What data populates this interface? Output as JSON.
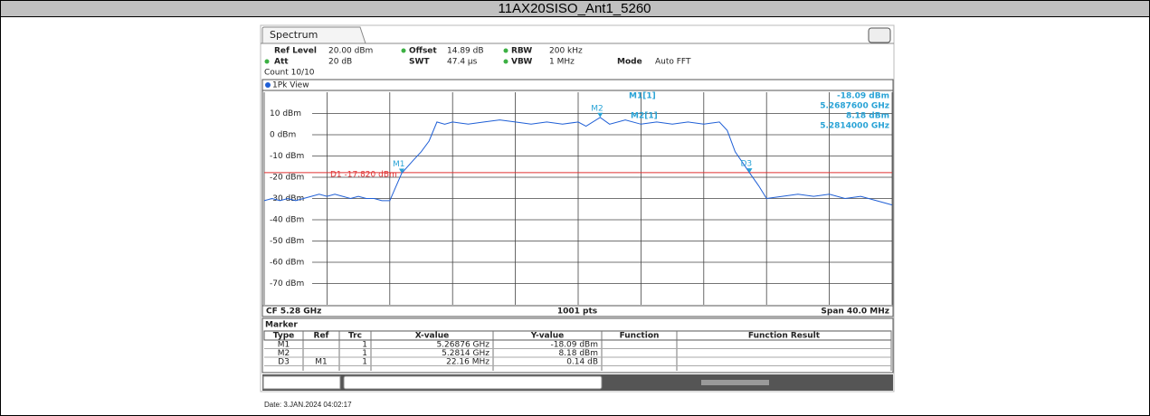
{
  "header": {
    "title": "11AX20SISO_Ant1_5260"
  },
  "date": "Date: 3.JAN.2024  04:02:17",
  "tab": "Spectrum",
  "settings": {
    "row1": [
      [
        "Ref Level",
        "20.00 dBm"
      ],
      [
        "Offset",
        "14.89 dB"
      ],
      [
        "RBW",
        "200 kHz"
      ]
    ],
    "row2": [
      [
        "Att",
        "20 dB"
      ],
      [
        "SWT",
        "47.4 µs"
      ],
      [
        "VBW",
        "1 MHz"
      ],
      [
        "Mode",
        "Auto FFT"
      ]
    ],
    "count": "Count 10/10"
  },
  "view": "1Pk View",
  "readout": [
    [
      "M1[1]",
      "-18.09 dBm",
      "5.2687600 GHz"
    ],
    [
      "M2[1]",
      "8.18 dBm",
      "5.2814000 GHz"
    ]
  ],
  "footer": {
    "left": "CF 5.28 GHz",
    "center": "1001 pts",
    "right": "Span 40.0 MHz"
  },
  "chart_data": {
    "type": "line",
    "xlim": [
      5.26,
      5.3
    ],
    "ylim": [
      -80,
      20
    ],
    "yticks": [
      {
        "value": 10,
        "label": "10 dBm"
      },
      {
        "value": 0,
        "label": "0 dBm"
      },
      {
        "value": -10,
        "label": "-10 dBm"
      },
      {
        "value": -20,
        "label": "-20 dBm"
      },
      {
        "value": -30,
        "label": "-30 dBm"
      },
      {
        "value": -40,
        "label": "-40 dBm"
      },
      {
        "value": -50,
        "label": "-50 dBm"
      },
      {
        "value": -60,
        "label": "-60 dBm"
      },
      {
        "value": -70,
        "label": "-70 dBm"
      }
    ],
    "xticks": [
      5.26,
      5.264,
      5.268,
      5.272,
      5.276,
      5.28,
      5.284,
      5.288,
      5.292,
      5.296,
      5.3
    ],
    "grid": true,
    "x": [
      5.26,
      5.2605,
      5.261,
      5.2615,
      5.262,
      5.2625,
      5.263,
      5.2635,
      5.264,
      5.2645,
      5.265,
      5.2655,
      5.266,
      5.2665,
      5.267,
      5.2675,
      5.268,
      5.26876,
      5.2695,
      5.27,
      5.2705,
      5.271,
      5.2715,
      5.272,
      5.273,
      5.274,
      5.275,
      5.276,
      5.277,
      5.278,
      5.279,
      5.28,
      5.2805,
      5.2814,
      5.282,
      5.283,
      5.284,
      5.285,
      5.286,
      5.287,
      5.288,
      5.289,
      5.2895,
      5.29,
      5.29092,
      5.2915,
      5.292,
      5.293,
      5.294,
      5.295,
      5.296,
      5.297,
      5.298,
      5.299,
      5.3
    ],
    "series": [
      {
        "color": "#1f5fd6",
        "values": [
          -31,
          -30,
          -31,
          -30,
          -31,
          -30,
          -29,
          -28,
          -29,
          -28,
          -29,
          -30,
          -29,
          -30,
          -30,
          -31,
          -31,
          -18.09,
          -12,
          -8,
          -3,
          6,
          5,
          6,
          5,
          6,
          7,
          6,
          5,
          6,
          5,
          6,
          4,
          8.18,
          5,
          7,
          5,
          6,
          5,
          6,
          5,
          6,
          2,
          -8,
          -17.95,
          -24,
          -30,
          -29,
          -28,
          -29,
          -28,
          -30,
          -29,
          -31,
          -33
        ]
      }
    ],
    "d1_line": {
      "value": -17.82,
      "label": "D1 -17.820 dBm",
      "color": "#e03030"
    },
    "markers": [
      {
        "label": "M1",
        "x": 5.26876,
        "y": -18.09
      },
      {
        "label": "M2",
        "x": 5.2814,
        "y": 8.18
      },
      {
        "label": "D3",
        "x": 5.29092,
        "y": -17.95
      }
    ],
    "marker_color": "#29a3d6"
  },
  "marker_table": {
    "title": "Marker",
    "columns": [
      "Type",
      "Ref",
      "Trc",
      "X-value",
      "Y-value",
      "Function",
      "Function Result"
    ],
    "rows": [
      {
        "type": "M1",
        "trc": "1",
        "x_value": "5.26876 GHz",
        "y_value": "-18.09 dBm"
      },
      {
        "type": "M2",
        "trc": "1",
        "x_value": "5.2814 GHz",
        "y_value": "8.18 dBm"
      },
      {
        "type": "D3",
        "ref": "M1",
        "trc": "1",
        "x_value": "22.16 MHz",
        "y_value": "0.14 dB"
      }
    ]
  }
}
